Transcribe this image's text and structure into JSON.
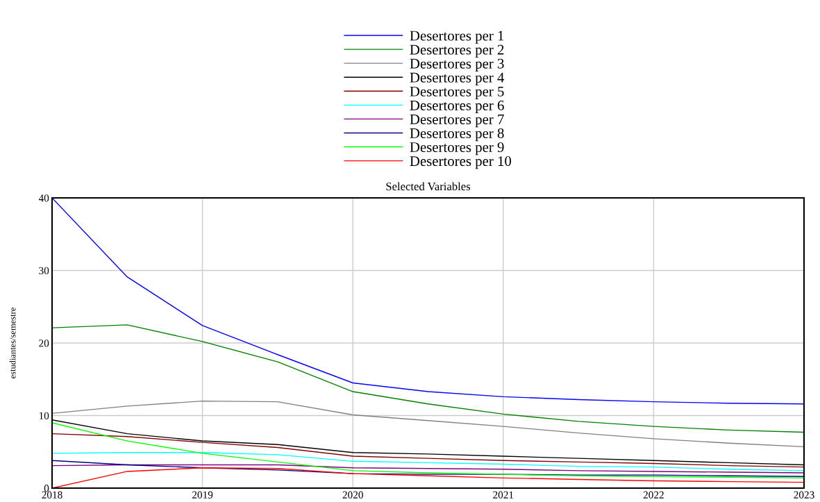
{
  "chart_data": {
    "type": "line",
    "title": "Selected Variables",
    "ylabel": "estudiantes/semestre",
    "x": [
      2018,
      2018.5,
      2019,
      2019.5,
      2020,
      2020.5,
      2021,
      2021.5,
      2022,
      2022.5,
      2023
    ],
    "xlim": [
      2018,
      2023
    ],
    "xticks": [
      2018,
      2019,
      2020,
      2021,
      2022,
      2023
    ],
    "ylim": [
      0,
      40
    ],
    "yticks": [
      0,
      10,
      20,
      30,
      40
    ],
    "grid": true,
    "legend": "top",
    "line_style": "solid",
    "marker": "none",
    "series": [
      {
        "name": "Desertores per 1",
        "color": "#0000ff",
        "values": [
          40,
          29.1,
          22.4,
          18.4,
          14.5,
          13.3,
          12.6,
          12.2,
          11.9,
          11.7,
          11.6
        ]
      },
      {
        "name": "Desertores per 2",
        "color": "#008000",
        "values": [
          22.1,
          22.5,
          20.2,
          17.4,
          13.3,
          11.6,
          10.2,
          9.2,
          8.5,
          8.0,
          7.7
        ]
      },
      {
        "name": "Desertores per 3",
        "color": "#808080",
        "values": [
          10.3,
          11.3,
          12.0,
          11.9,
          10.1,
          9.3,
          8.5,
          7.6,
          6.8,
          6.2,
          5.7
        ]
      },
      {
        "name": "Desertores per 4",
        "color": "#000000",
        "values": [
          9.4,
          7.5,
          6.5,
          6.0,
          4.9,
          4.7,
          4.4,
          4.1,
          3.8,
          3.5,
          3.2
        ]
      },
      {
        "name": "Desertores per 5",
        "color": "#800000",
        "values": [
          7.5,
          7.1,
          6.3,
          5.6,
          4.4,
          4.1,
          3.8,
          3.6,
          3.4,
          3.1,
          2.9
        ]
      },
      {
        "name": "Desertores per 6",
        "color": "#00ffff",
        "values": [
          4.8,
          4.9,
          4.9,
          4.6,
          3.7,
          3.5,
          3.3,
          3.0,
          2.9,
          2.6,
          2.4
        ]
      },
      {
        "name": "Desertores per 7",
        "color": "#800080",
        "values": [
          3.1,
          3.2,
          3.2,
          3.2,
          2.8,
          2.7,
          2.6,
          2.4,
          2.3,
          2.2,
          2.1
        ]
      },
      {
        "name": "Desertores per 8",
        "color": "#000080",
        "values": [
          3.8,
          3.2,
          2.8,
          2.5,
          2.0,
          1.9,
          1.9,
          1.8,
          1.8,
          1.7,
          1.6
        ]
      },
      {
        "name": "Desertores per 9",
        "color": "#00ff00",
        "values": [
          9.0,
          6.5,
          4.8,
          3.6,
          2.4,
          2.1,
          1.9,
          1.7,
          1.6,
          1.5,
          1.4
        ]
      },
      {
        "name": "Desertores per 10",
        "color": "#ff0000",
        "values": [
          0,
          2.3,
          2.8,
          2.7,
          2.0,
          1.7,
          1.4,
          1.2,
          1.0,
          0.9,
          0.8
        ]
      }
    ]
  }
}
